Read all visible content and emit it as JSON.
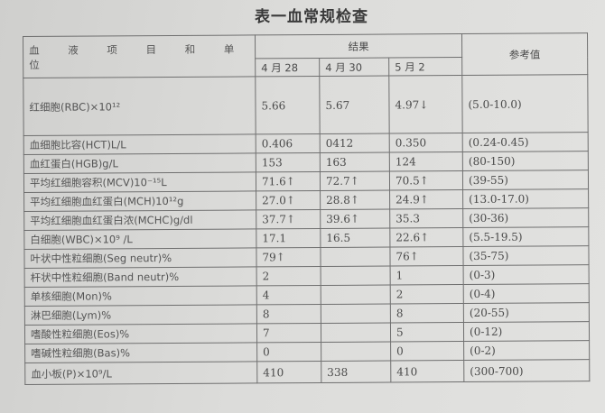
{
  "title": "表一血常规检查",
  "header": {
    "item": "血 液 项 目 和 单 位",
    "results": "结果",
    "reference": "参考值",
    "dates": [
      "4 月 28",
      "4 月 30",
      "5 月 2"
    ]
  },
  "rows": [
    {
      "label": "红细胞(RBC)×10¹²",
      "v": [
        "5.66",
        "5.67",
        "4.97↓"
      ],
      "ref": "(5.0-10.0)"
    },
    {
      "label": "血细胞比容(HCT)L/L",
      "v": [
        "0.406",
        "0412",
        "0.350"
      ],
      "ref": "(0.24-0.45)"
    },
    {
      "label": "血红蛋白(HGB)g/L",
      "v": [
        "153",
        "163",
        "124"
      ],
      "ref": "(80-150)"
    },
    {
      "label": "平均红细胞容积(MCV)10⁻¹⁵L",
      "v": [
        "71.6↑",
        "72.7↑",
        "70.5↑"
      ],
      "ref": "(39-55)"
    },
    {
      "label": "平均红细胞血红蛋白(MCH)10¹²g",
      "v": [
        "27.0↑",
        "28.8↑",
        "24.9↑"
      ],
      "ref": "(13.0-17.0)"
    },
    {
      "label": "平均红细胞血红蛋白浓(MCHC)g/dl",
      "v": [
        "37.7↑",
        "39.6↑",
        "35.3"
      ],
      "ref": "(30-36)"
    },
    {
      "label": "白细胞(WBC)×10⁹ /L",
      "v": [
        "17.1",
        "16.5",
        "22.6↑"
      ],
      "ref": "(5.5-19.5)"
    },
    {
      "label": "叶状中性粒细胞(Seg neutr)%",
      "v": [
        "79↑",
        "",
        "76↑"
      ],
      "ref": "(35-75)"
    },
    {
      "label": "杆状中性粒细胞(Band neutr)%",
      "v": [
        "2",
        "",
        "1"
      ],
      "ref": "(0-3)"
    },
    {
      "label": "单核细胞(Mon)%",
      "v": [
        "4",
        "",
        "2"
      ],
      "ref": "(0-4)"
    },
    {
      "label": "淋巴细胞(Lym)%",
      "v": [
        "8",
        "",
        "8"
      ],
      "ref": "(20-55)"
    },
    {
      "label": "嗜酸性粒细胞(Eos)%",
      "v": [
        "7",
        "",
        "5"
      ],
      "ref": "(0-12)"
    },
    {
      "label": "嗜碱性粒细胞(Bas)%",
      "v": [
        "0",
        "",
        "0"
      ],
      "ref": "(0-2)"
    },
    {
      "label": "血小板(P)×10⁹/L",
      "v": [
        "410",
        "338",
        "410"
      ],
      "ref": "(300-700)"
    }
  ]
}
